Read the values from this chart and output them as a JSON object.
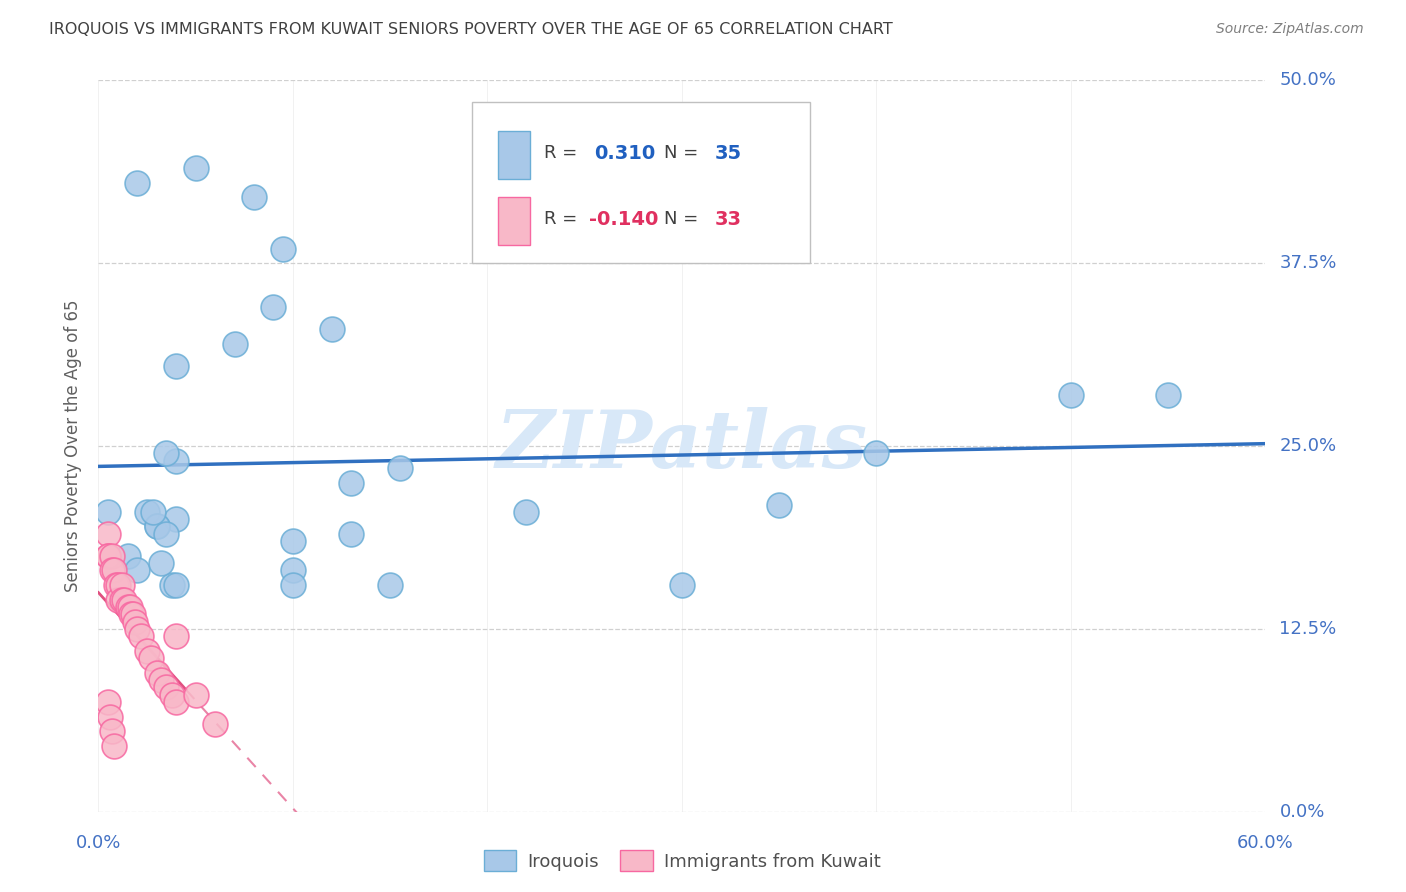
{
  "title": "IROQUOIS VS IMMIGRANTS FROM KUWAIT SENIORS POVERTY OVER THE AGE OF 65 CORRELATION CHART",
  "source": "Source: ZipAtlas.com",
  "ylabel_label": "Seniors Poverty Over the Age of 65",
  "yticks": [
    0.0,
    0.125,
    0.25,
    0.375,
    0.5
  ],
  "ytick_labels": [
    "0.0%",
    "12.5%",
    "25.0%",
    "37.5%",
    "50.0%"
  ],
  "xmin": 0.0,
  "xmax": 0.6,
  "ymin": 0.0,
  "ymax": 0.5,
  "legend1_R": "0.310",
  "legend1_N": "35",
  "legend2_R": "-0.140",
  "legend2_N": "33",
  "iroquois_color": "#a8c8e8",
  "kuwait_color": "#f8b8c8",
  "iroquois_edge": "#6baed6",
  "kuwait_edge": "#f768a1",
  "trendline1_color": "#3070c0",
  "trendline2_color": "#e05080",
  "watermark_color": "#d8e8f8",
  "background_color": "#ffffff",
  "grid_color": "#d0d0d0",
  "axis_label_color": "#4472c4",
  "title_color": "#404040",
  "source_color": "#808080",
  "ylabel_color": "#606060",
  "legend_text_dark": "#404040",
  "legend_val_blue": "#2060c0",
  "legend_val_pink": "#e03060",
  "iroquois_x": [
    0.02,
    0.05,
    0.08,
    0.095,
    0.12,
    0.04,
    0.04,
    0.04,
    0.07,
    0.09,
    0.13,
    0.13,
    0.15,
    0.155,
    0.22,
    0.3,
    0.35,
    0.4,
    0.5,
    0.55,
    0.025,
    0.03,
    0.03,
    0.035,
    0.035,
    0.015,
    0.02,
    0.1,
    0.1,
    0.1,
    0.005,
    0.038,
    0.04,
    0.032,
    0.028
  ],
  "iroquois_y": [
    0.43,
    0.44,
    0.42,
    0.385,
    0.33,
    0.305,
    0.24,
    0.2,
    0.32,
    0.345,
    0.225,
    0.19,
    0.155,
    0.235,
    0.205,
    0.155,
    0.21,
    0.245,
    0.285,
    0.285,
    0.205,
    0.195,
    0.195,
    0.19,
    0.245,
    0.175,
    0.165,
    0.165,
    0.185,
    0.155,
    0.205,
    0.155,
    0.155,
    0.17,
    0.205
  ],
  "kuwait_x": [
    0.005,
    0.005,
    0.005,
    0.007,
    0.007,
    0.008,
    0.009,
    0.01,
    0.01,
    0.012,
    0.012,
    0.013,
    0.015,
    0.016,
    0.017,
    0.018,
    0.019,
    0.02,
    0.022,
    0.025,
    0.027,
    0.03,
    0.032,
    0.035,
    0.038,
    0.04,
    0.04,
    0.05,
    0.06,
    0.005,
    0.006,
    0.007,
    0.008
  ],
  "kuwait_y": [
    0.19,
    0.175,
    0.175,
    0.175,
    0.165,
    0.165,
    0.155,
    0.155,
    0.145,
    0.155,
    0.145,
    0.145,
    0.14,
    0.14,
    0.135,
    0.135,
    0.13,
    0.125,
    0.12,
    0.11,
    0.105,
    0.095,
    0.09,
    0.085,
    0.08,
    0.075,
    0.12,
    0.08,
    0.06,
    0.075,
    0.065,
    0.055,
    0.045
  ]
}
